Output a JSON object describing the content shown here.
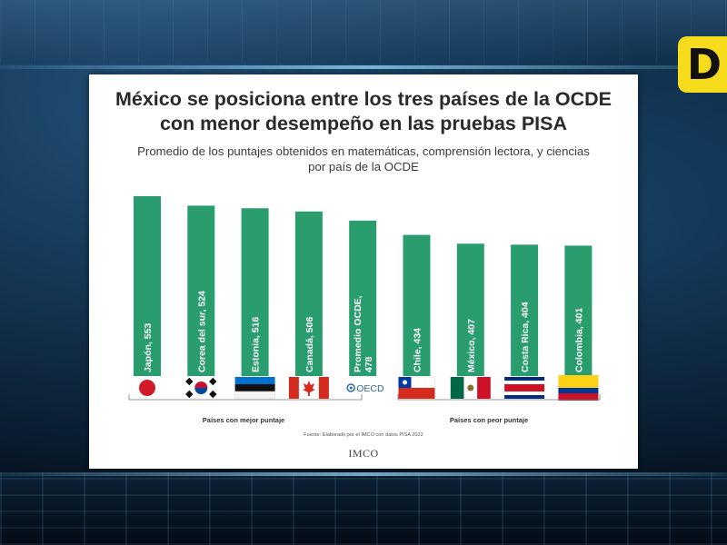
{
  "title_line1": "México se posiciona entre los tres países de la OCDE",
  "title_line2": "con menor desempeño en las pruebas PISA",
  "subtitle_line1": "Promedio de los puntajes obtenidos en matemáticas, comprensión lectora, y ciencias",
  "subtitle_line2": "por país de la OCDE",
  "group_best": "Países con mejor puntaje",
  "group_worst": "Países con peor puntaje",
  "source": "Fuente: Elaborado por el IMCO con datos PISA 2022",
  "footer_logo": "IMCO",
  "channel_logo": "D",
  "oecd_logo_text": "OECD",
  "colors": {
    "bar": "#2a9d6e",
    "badge": "#f6dc1d"
  },
  "chart_data": {
    "type": "bar",
    "categories": [
      "Japón",
      "Corea del sur",
      "Estonia",
      "Canadá",
      "Promedio OCDE",
      "Chile",
      "México",
      "Costa Rica",
      "Colombia"
    ],
    "values": [
      553,
      524,
      516,
      506,
      478,
      434,
      407,
      404,
      401
    ],
    "labels": [
      [
        "Japón, 553"
      ],
      [
        "Corea del sur, 524"
      ],
      [
        "Estonia, 516"
      ],
      [
        "Canadá, 506"
      ],
      [
        "Promedio OCDE,",
        "478"
      ],
      [
        "Chile, 434"
      ],
      [
        "México, 407"
      ],
      [
        "Costa Rica, 404"
      ],
      [
        "Colombia, 401"
      ]
    ],
    "flags": [
      "japan-flag",
      "south-korea-flag",
      "estonia-flag",
      "canada-flag",
      "oecd-logo",
      "chile-flag",
      "mexico-flag",
      "costa-rica-flag",
      "colombia-flag"
    ],
    "title": "México se posiciona entre los tres países de la OCDE con menor desempeño en las pruebas PISA",
    "xlabel": "",
    "ylabel": ""
  }
}
